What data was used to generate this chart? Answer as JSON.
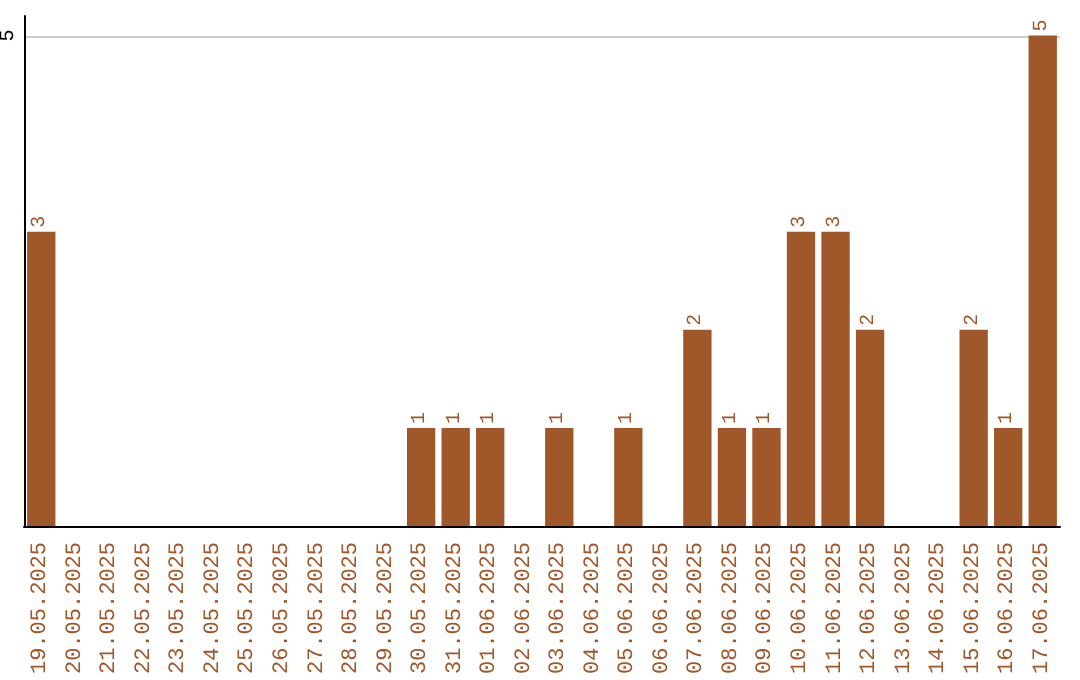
{
  "chart_data": {
    "type": "bar",
    "categories": [
      "19.05.2025",
      "20.05.2025",
      "21.05.2025",
      "22.05.2025",
      "23.05.2025",
      "24.05.2025",
      "25.05.2025",
      "26.05.2025",
      "27.05.2025",
      "28.05.2025",
      "29.05.2025",
      "30.05.2025",
      "31.05.2025",
      "01.06.2025",
      "02.06.2025",
      "03.06.2025",
      "04.06.2025",
      "05.06.2025",
      "06.06.2025",
      "07.06.2025",
      "08.06.2025",
      "09.06.2025",
      "10.06.2025",
      "11.06.2025",
      "12.06.2025",
      "13.06.2025",
      "14.06.2025",
      "15.06.2025",
      "16.06.2025",
      "17.06.2025"
    ],
    "values": [
      3,
      0,
      0,
      0,
      0,
      0,
      0,
      0,
      0,
      0,
      0,
      1,
      1,
      1,
      0,
      1,
      0,
      1,
      0,
      2,
      1,
      1,
      3,
      3,
      2,
      0,
      0,
      2,
      1,
      5
    ],
    "value_labels": [
      "3",
      null,
      null,
      null,
      null,
      null,
      null,
      null,
      null,
      null,
      null,
      "1",
      "1",
      "1",
      null,
      "1",
      null,
      "1",
      null,
      "2",
      "1",
      "1",
      "3",
      "3",
      "2",
      null,
      null,
      "2",
      "1",
      "5"
    ],
    "color": "#a0572a",
    "ylim": [
      0,
      5.2
    ],
    "yticks": [
      5
    ],
    "grid": "y"
  }
}
